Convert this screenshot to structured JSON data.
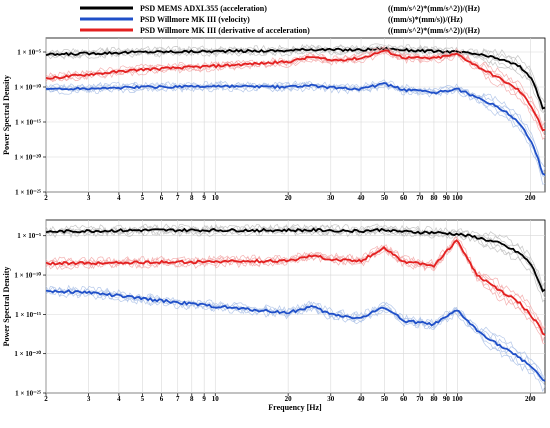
{
  "chart_data": [
    {
      "type": "line",
      "panel": "top",
      "xscale": "log",
      "yscale": "log",
      "xlim": [
        2,
        230
      ],
      "ylim": [
        1e-25,
        0.001
      ],
      "grid": true,
      "legend_placement": "top",
      "ylabel": "Power Spectral Density",
      "xlabel": "",
      "x_ticks": [
        2,
        3,
        4,
        5,
        6,
        7,
        8,
        9,
        10,
        20,
        30,
        40,
        50,
        60,
        70,
        80,
        90,
        100,
        200
      ],
      "x_tick_labels": [
        "2",
        "3",
        "4",
        "5",
        "6",
        "7",
        "8",
        "9",
        "10",
        "20",
        "30",
        "40",
        "50",
        "60",
        "70",
        "80",
        "90",
        "100",
        "200"
      ],
      "y_ticks": [
        1e-05,
        1e-10,
        1e-15,
        1e-20,
        1e-25
      ],
      "y_tick_labels": [
        "1 × 10⁻⁵",
        "1 × 10⁻¹⁰",
        "1 × 10⁻¹⁵",
        "1 × 10⁻²⁰",
        "1 × 10⁻²⁵"
      ],
      "series": [
        {
          "name": "PSD MEMS ADXL355 (acceleration)",
          "color": "#000000",
          "band_color": "#bdbdbd",
          "x": [
            2,
            3,
            5,
            10,
            20,
            25,
            30,
            40,
            50,
            60,
            80,
            100,
            120,
            150,
            180,
            200,
            215,
            225
          ],
          "logy": [
            -5.4,
            -5.2,
            -5.0,
            -4.9,
            -4.8,
            -4.6,
            -4.7,
            -4.7,
            -4.5,
            -4.7,
            -4.9,
            -5.0,
            -5.3,
            -6.0,
            -7.0,
            -8.5,
            -11.0,
            -13.0
          ]
        },
        {
          "name": "PSD Willmore MK III (velocity)",
          "color": "#1f4fc8",
          "band_color": "#a9bfe6",
          "x": [
            2,
            3,
            5,
            10,
            20,
            25,
            30,
            40,
            50,
            60,
            80,
            100,
            120,
            150,
            180,
            200,
            215,
            225
          ],
          "logy": [
            -10.3,
            -10.2,
            -10.0,
            -9.9,
            -10.0,
            -9.8,
            -10.1,
            -10.3,
            -9.5,
            -10.4,
            -10.8,
            -10.3,
            -11.5,
            -13.0,
            -15.0,
            -17.5,
            -20.0,
            -22.5
          ]
        },
        {
          "name": "PSD Willmore MK III (derivative of acceleration)",
          "color": "#e32020",
          "band_color": "#f2a5a5",
          "x": [
            2,
            3,
            5,
            10,
            20,
            25,
            30,
            40,
            50,
            60,
            80,
            100,
            120,
            150,
            180,
            200,
            215,
            225
          ],
          "logy": [
            -8.8,
            -8.2,
            -7.5,
            -7.0,
            -6.4,
            -5.7,
            -6.2,
            -5.9,
            -4.8,
            -5.8,
            -5.9,
            -5.3,
            -7.0,
            -8.8,
            -10.5,
            -12.5,
            -14.5,
            -16.2
          ]
        }
      ]
    },
    {
      "type": "line",
      "panel": "bottom",
      "xscale": "log",
      "yscale": "log",
      "xlim": [
        2,
        230
      ],
      "ylim": [
        1e-25,
        0.001
      ],
      "grid": true,
      "ylabel": "Power Spectral Density",
      "xlabel": "Frequency [Hz]",
      "x_ticks": [
        2,
        3,
        4,
        5,
        6,
        7,
        8,
        9,
        10,
        20,
        30,
        40,
        50,
        60,
        70,
        80,
        90,
        100,
        200
      ],
      "x_tick_labels": [
        "2",
        "3",
        "4",
        "5",
        "6",
        "7",
        "8",
        "9",
        "10",
        "20",
        "30",
        "40",
        "50",
        "60",
        "70",
        "80",
        "90",
        "100",
        "200"
      ],
      "y_ticks": [
        1e-05,
        1e-10,
        1e-15,
        1e-20,
        1e-25
      ],
      "y_tick_labels": [
        "1 × 10⁻⁵",
        "1 × 10⁻¹⁰",
        "1 × 10⁻¹⁵",
        "1 × 10⁻²⁰",
        "1 × 10⁻²⁵"
      ],
      "series": [
        {
          "name": "PSD MEMS ADXL355 (acceleration)",
          "color": "#000000",
          "band_color": "#bdbdbd",
          "x": [
            2,
            3,
            5,
            10,
            20,
            30,
            40,
            50,
            60,
            80,
            100,
            120,
            150,
            180,
            200,
            215,
            225
          ],
          "logy": [
            -4.5,
            -4.4,
            -4.3,
            -4.3,
            -4.3,
            -4.3,
            -4.4,
            -4.2,
            -4.5,
            -4.6,
            -4.8,
            -5.2,
            -6.0,
            -7.2,
            -8.5,
            -10.5,
            -12.0
          ]
        },
        {
          "name": "PSD Willmore MK III (velocity)",
          "color": "#1f4fc8",
          "band_color": "#a9bfe6",
          "x": [
            2,
            3,
            5,
            10,
            20,
            25,
            30,
            40,
            50,
            60,
            80,
            100,
            120,
            150,
            180,
            200,
            215,
            225
          ],
          "logy": [
            -12.0,
            -12.2,
            -13.0,
            -14.0,
            -14.8,
            -14.0,
            -15.0,
            -15.5,
            -14.0,
            -15.8,
            -16.3,
            -14.5,
            -17.0,
            -19.0,
            -20.5,
            -21.5,
            -22.5,
            -23.5
          ]
        },
        {
          "name": "PSD Willmore MK III (derivative of acceleration)",
          "color": "#e32020",
          "band_color": "#f2a5a5",
          "x": [
            2,
            3,
            5,
            10,
            20,
            25,
            30,
            40,
            50,
            60,
            80,
            100,
            120,
            150,
            180,
            200,
            215,
            225
          ],
          "logy": [
            -8.5,
            -8.5,
            -8.4,
            -8.3,
            -8.2,
            -7.5,
            -8.0,
            -8.2,
            -6.5,
            -8.3,
            -8.8,
            -5.5,
            -10.0,
            -12.0,
            -13.5,
            -15.0,
            -16.2,
            -17.5
          ]
        }
      ]
    }
  ],
  "legend": {
    "items": [
      {
        "label": "PSD MEMS ADXL355 (acceleration)",
        "unit": "((mm/s^2)*(mm/s^2))/(Hz)",
        "color": "#000000"
      },
      {
        "label": "PSD Willmore MK III (velocity)",
        "unit": "((mm/s)*(mm/s))/(Hz)",
        "color": "#1f4fc8"
      },
      {
        "label": "PSD Willmore MK III (derivative of acceleration)",
        "unit": "((mm/s^2)*(mm/s^2))/(Hz)",
        "color": "#e32020"
      }
    ]
  }
}
